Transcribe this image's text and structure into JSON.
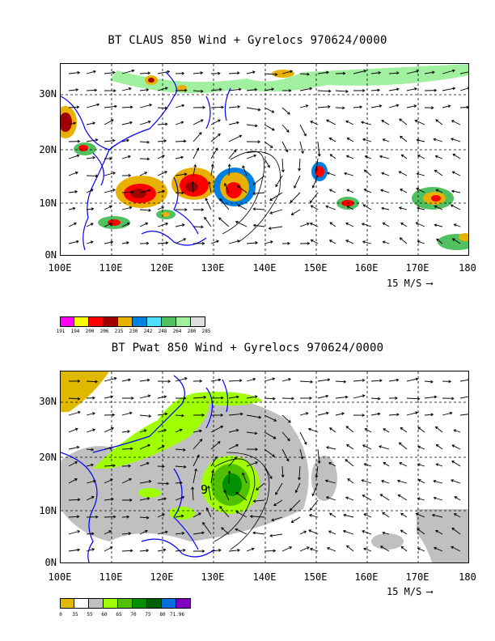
{
  "panel1": {
    "title": "BT CLAUS 850 Wind + Gyrelocs 970624/0000",
    "y_labels": [
      "30N",
      "20N",
      "10N",
      "0N"
    ],
    "x_labels": [
      "100E",
      "110E",
      "120E",
      "130E",
      "140E",
      "150E",
      "160E",
      "170E",
      "180"
    ],
    "ref_vector": "15 M/S",
    "legend": {
      "colors": [
        "#ff00ff",
        "#ffff00",
        "#ff0000",
        "#a00000",
        "#e8b000",
        "#0080e0",
        "#50e0ff",
        "#50c060",
        "#a0f0a0",
        "#e0e0e0"
      ],
      "labels": [
        "191",
        "194",
        "200",
        "206",
        "215",
        "230",
        "242",
        "248",
        "264",
        "280",
        "285"
      ]
    }
  },
  "panel2": {
    "title": "BT Pwat 850 Wind + Gyrelocs 970624/0000",
    "y_labels": [
      "30N",
      "20N",
      "10N",
      "0N"
    ],
    "x_labels": [
      "100E",
      "110E",
      "120E",
      "130E",
      "140E",
      "150E",
      "160E",
      "170E",
      "180"
    ],
    "ref_vector": "15 M/S",
    "marker": "9",
    "legend": {
      "colors": [
        "#e0b800",
        "#ffffff",
        "#c0c0c0",
        "#a0ff00",
        "#50c000",
        "#009000",
        "#006000",
        "#0070e0",
        "#8000c0"
      ],
      "labels": [
        "0",
        "35",
        "55",
        "60",
        "65",
        "70",
        "75",
        "80",
        "71.96"
      ]
    }
  }
}
